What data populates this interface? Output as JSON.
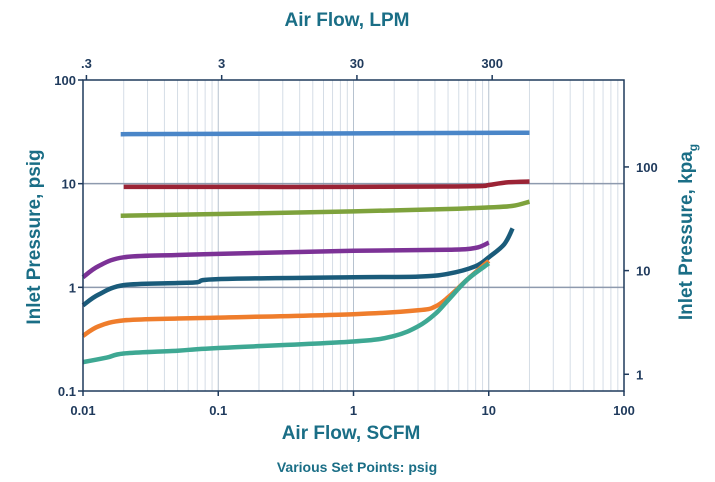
{
  "chart_data": {
    "type": "line",
    "title": "Air Flow, LPM",
    "xlabel": "Air Flow, SCFM",
    "ylabel": "Inlet Pressure, psig",
    "y2label_main": "Inlet Pressure, kpa",
    "y2label_sub": "g",
    "caption": "Various Set Points: psig",
    "x_scale": "log",
    "y_scale": "log",
    "xlim": [
      0.01,
      100
    ],
    "ylim": [
      0.1,
      100
    ],
    "x_ticks": [
      "0.01",
      "0.1",
      "1",
      "10",
      "100"
    ],
    "x2_ticks": [
      {
        "label": ".3",
        "scfm": 0.0106
      },
      {
        "label": "3",
        "scfm": 0.106
      },
      {
        "label": "30",
        "scfm": 1.06
      },
      {
        "label": "300",
        "scfm": 10.6
      }
    ],
    "y_ticks": [
      "0.1",
      "1",
      "10",
      "100"
    ],
    "y2_ticks": [
      {
        "label": "1",
        "psig": 0.145
      },
      {
        "label": "10",
        "psig": 1.45
      },
      {
        "label": "100",
        "psig": 14.5
      }
    ],
    "grid": true,
    "series": [
      {
        "color": "#4a86c8",
        "x": [
          0.019,
          20
        ],
        "y": [
          30,
          31
        ]
      },
      {
        "color": "#9b2335",
        "x": [
          0.02,
          0.1,
          1,
          5,
          9,
          10,
          14,
          20
        ],
        "y": [
          9.3,
          9.3,
          9.3,
          9.4,
          9.5,
          9.7,
          10.3,
          10.5
        ]
      },
      {
        "color": "#7ea23c",
        "x": [
          0.019,
          0.1,
          1,
          5,
          10,
          15,
          20
        ],
        "y": [
          4.9,
          5.1,
          5.4,
          5.7,
          5.9,
          6.1,
          6.7
        ]
      },
      {
        "color": "#7c3296",
        "x": [
          0.01,
          0.013,
          0.02,
          0.05,
          0.1,
          1,
          5,
          8,
          10
        ],
        "y": [
          1.25,
          1.6,
          1.95,
          2.05,
          2.1,
          2.25,
          2.3,
          2.4,
          2.7
        ]
      },
      {
        "color": "#1a5b7a",
        "x": [
          0.01,
          0.013,
          0.02,
          0.05,
          0.07,
          0.1,
          1,
          3,
          5,
          8,
          10,
          13,
          15
        ],
        "y": [
          0.67,
          0.85,
          1.05,
          1.1,
          1.12,
          1.2,
          1.25,
          1.27,
          1.35,
          1.6,
          1.95,
          2.6,
          3.7
        ]
      },
      {
        "color": "#ef7d2c",
        "x": [
          0.01,
          0.013,
          0.02,
          0.05,
          0.1,
          1,
          3,
          4,
          5,
          7,
          10
        ],
        "y": [
          0.34,
          0.42,
          0.48,
          0.5,
          0.51,
          0.55,
          0.6,
          0.65,
          0.8,
          1.2,
          1.8
        ]
      },
      {
        "color": "#3ea893",
        "x": [
          0.01,
          0.015,
          0.02,
          0.05,
          0.1,
          1,
          2,
          3,
          4,
          5,
          7,
          10
        ],
        "y": [
          0.19,
          0.21,
          0.23,
          0.245,
          0.26,
          0.3,
          0.34,
          0.42,
          0.55,
          0.75,
          1.2,
          1.7
        ]
      }
    ]
  }
}
